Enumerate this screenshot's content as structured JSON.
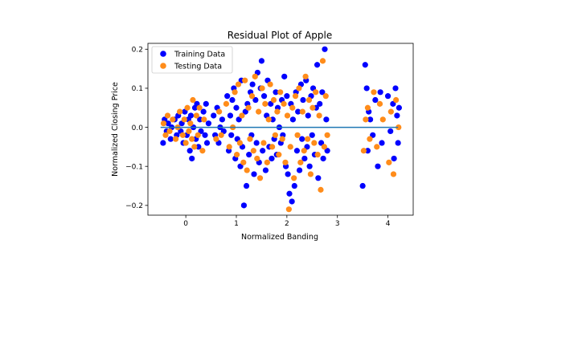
{
  "chart_data": {
    "type": "scatter",
    "title": "Residual Plot of Apple",
    "xlabel": "Normalized Banding",
    "ylabel": "Normalized Closing Price",
    "xlim": [
      -0.75,
      4.5
    ],
    "ylim": [
      -0.225,
      0.215
    ],
    "x_ticks": [
      0,
      1,
      2,
      3,
      4
    ],
    "y_ticks": [
      -0.2,
      -0.1,
      0.0,
      0.1,
      0.2
    ],
    "x_tick_labels": [
      "0",
      "1",
      "2",
      "3",
      "4"
    ],
    "y_tick_labels": [
      "−0.2",
      "−0.1",
      "0.0",
      "0.1",
      "0.2"
    ],
    "grid": false,
    "legend_position": "top-left",
    "reference_line": {
      "y": 0.0,
      "x_range": [
        -0.5,
        4.2
      ],
      "color": "#1f77b4"
    },
    "series": [
      {
        "name": "Training Data",
        "color": "#0000ff",
        "points": [
          [
            -0.45,
            -0.04
          ],
          [
            -0.42,
            0.02
          ],
          [
            -0.38,
            -0.01
          ],
          [
            -0.35,
            0.01
          ],
          [
            -0.3,
            -0.03
          ],
          [
            -0.28,
            0.0
          ],
          [
            -0.22,
            0.02
          ],
          [
            -0.18,
            -0.02
          ],
          [
            -0.15,
            0.03
          ],
          [
            -0.1,
            -0.01
          ],
          [
            -0.08,
            0.01
          ],
          [
            -0.05,
            -0.04
          ],
          [
            -0.02,
            0.04
          ],
          [
            0.02,
            -0.02
          ],
          [
            0.05,
            0.02
          ],
          [
            0.08,
            -0.06
          ],
          [
            0.1,
            0.03
          ],
          [
            0.12,
            -0.08
          ],
          [
            0.15,
            0.0
          ],
          [
            0.18,
            0.05
          ],
          [
            0.2,
            -0.03
          ],
          [
            0.22,
            0.06
          ],
          [
            0.25,
            -0.05
          ],
          [
            0.28,
            0.02
          ],
          [
            0.3,
            -0.01
          ],
          [
            0.35,
            0.04
          ],
          [
            0.38,
            -0.02
          ],
          [
            0.4,
            0.06
          ],
          [
            0.42,
            -0.04
          ],
          [
            0.45,
            0.01
          ],
          [
            0.55,
            0.03
          ],
          [
            0.58,
            -0.02
          ],
          [
            0.62,
            0.05
          ],
          [
            0.65,
            -0.04
          ],
          [
            0.68,
            0.0
          ],
          [
            0.72,
            0.02
          ],
          [
            0.75,
            -0.01
          ],
          [
            0.82,
            0.08
          ],
          [
            0.85,
            -0.06
          ],
          [
            0.88,
            0.03
          ],
          [
            0.9,
            -0.02
          ],
          [
            0.92,
            0.07
          ],
          [
            0.95,
            0.1
          ],
          [
            0.98,
            -0.08
          ],
          [
            1.0,
            0.05
          ],
          [
            1.02,
            -0.03
          ],
          [
            1.05,
            0.02
          ],
          [
            1.08,
            -0.1
          ],
          [
            1.1,
            0.12
          ],
          [
            1.12,
            -0.05
          ],
          [
            1.15,
            -0.2
          ],
          [
            1.18,
            0.04
          ],
          [
            1.2,
            -0.15
          ],
          [
            1.22,
            0.06
          ],
          [
            1.25,
            -0.07
          ],
          [
            1.28,
            0.09
          ],
          [
            1.3,
            -0.02
          ],
          [
            1.32,
            0.11
          ],
          [
            1.35,
            -0.12
          ],
          [
            1.38,
            0.07
          ],
          [
            1.4,
            -0.04
          ],
          [
            1.42,
            0.14
          ],
          [
            1.45,
            -0.09
          ],
          [
            1.48,
            0.1
          ],
          [
            1.5,
            0.17
          ],
          [
            1.52,
            -0.06
          ],
          [
            1.55,
            0.08
          ],
          [
            1.58,
            -0.11
          ],
          [
            1.6,
            0.03
          ],
          [
            1.62,
            0.12
          ],
          [
            1.65,
            -0.05
          ],
          [
            1.68,
            0.06
          ],
          [
            1.7,
            -0.08
          ],
          [
            1.72,
            0.02
          ],
          [
            1.75,
            -0.03
          ],
          [
            1.78,
            0.09
          ],
          [
            1.8,
            -0.07
          ],
          [
            1.82,
            0.05
          ],
          [
            1.85,
            0.0
          ],
          [
            1.88,
            -0.04
          ],
          [
            1.9,
            0.07
          ],
          [
            1.92,
            -0.02
          ],
          [
            1.95,
            0.13
          ],
          [
            1.98,
            -0.1
          ],
          [
            2.0,
            0.08
          ],
          [
            2.02,
            -0.12
          ],
          [
            2.05,
            -0.17
          ],
          [
            2.08,
            0.06
          ],
          [
            2.1,
            -0.19
          ],
          [
            2.12,
            0.02
          ],
          [
            2.15,
            -0.15
          ],
          [
            2.18,
            0.09
          ],
          [
            2.2,
            -0.06
          ],
          [
            2.22,
            0.04
          ],
          [
            2.25,
            -0.11
          ],
          [
            2.28,
            0.11
          ],
          [
            2.3,
            -0.03
          ],
          [
            2.32,
            0.07
          ],
          [
            2.35,
            -0.08
          ],
          [
            2.38,
            0.12
          ],
          [
            2.4,
            -0.05
          ],
          [
            2.42,
            0.03
          ],
          [
            2.45,
            -0.1
          ],
          [
            2.48,
            0.08
          ],
          [
            2.5,
            -0.02
          ],
          [
            2.52,
            0.1
          ],
          [
            2.55,
            -0.07
          ],
          [
            2.58,
            0.05
          ],
          [
            2.6,
            0.16
          ],
          [
            2.62,
            -0.13
          ],
          [
            2.65,
            0.06
          ],
          [
            2.68,
            -0.04
          ],
          [
            2.7,
            0.09
          ],
          [
            2.72,
            -0.08
          ],
          [
            2.75,
            0.2
          ],
          [
            2.78,
            0.02
          ],
          [
            2.8,
            -0.06
          ],
          [
            3.5,
            -0.15
          ],
          [
            3.55,
            0.16
          ],
          [
            3.58,
            0.1
          ],
          [
            3.6,
            -0.06
          ],
          [
            3.62,
            0.04
          ],
          [
            3.65,
            0.02
          ],
          [
            3.7,
            -0.02
          ],
          [
            3.75,
            0.07
          ],
          [
            3.8,
            -0.1
          ],
          [
            3.85,
            0.09
          ],
          [
            3.88,
            -0.04
          ],
          [
            4.0,
            0.08
          ],
          [
            4.05,
            -0.01
          ],
          [
            4.1,
            0.06
          ],
          [
            4.12,
            -0.08
          ],
          [
            4.15,
            0.1
          ],
          [
            4.18,
            0.03
          ],
          [
            4.2,
            -0.04
          ],
          [
            4.22,
            0.05
          ]
        ]
      },
      {
        "name": "Testing Data",
        "color": "#ff8c1a",
        "points": [
          [
            -0.44,
            0.01
          ],
          [
            -0.4,
            -0.02
          ],
          [
            -0.36,
            0.03
          ],
          [
            -0.32,
            -0.01
          ],
          [
            -0.26,
            0.02
          ],
          [
            -0.2,
            -0.03
          ],
          [
            -0.16,
            0.0
          ],
          [
            -0.12,
            0.04
          ],
          [
            -0.06,
            -0.02
          ],
          [
            -0.03,
            0.02
          ],
          [
            0.0,
            -0.04
          ],
          [
            0.03,
            0.05
          ],
          [
            0.06,
            -0.01
          ],
          [
            0.09,
            0.01
          ],
          [
            0.12,
            -0.03
          ],
          [
            0.14,
            0.07
          ],
          [
            0.17,
            -0.05
          ],
          [
            0.21,
            0.03
          ],
          [
            0.24,
            -0.02
          ],
          [
            0.27,
            0.05
          ],
          [
            0.33,
            -0.06
          ],
          [
            0.36,
            0.02
          ],
          [
            0.6,
            -0.03
          ],
          [
            0.66,
            0.04
          ],
          [
            0.7,
            -0.02
          ],
          [
            0.8,
            0.06
          ],
          [
            0.86,
            -0.05
          ],
          [
            0.93,
            0.0
          ],
          [
            0.97,
            0.09
          ],
          [
            1.01,
            -0.07
          ],
          [
            1.04,
            0.11
          ],
          [
            1.07,
            -0.04
          ],
          [
            1.11,
            0.03
          ],
          [
            1.14,
            -0.09
          ],
          [
            1.17,
            0.12
          ],
          [
            1.21,
            -0.11
          ],
          [
            1.24,
            0.05
          ],
          [
            1.27,
            -0.03
          ],
          [
            1.31,
            0.08
          ],
          [
            1.34,
            -0.06
          ],
          [
            1.37,
            0.13
          ],
          [
            1.41,
            -0.08
          ],
          [
            1.44,
            0.04
          ],
          [
            1.47,
            -0.13
          ],
          [
            1.51,
            0.1
          ],
          [
            1.54,
            -0.04
          ],
          [
            1.57,
            0.06
          ],
          [
            1.61,
            -0.09
          ],
          [
            1.64,
            0.02
          ],
          [
            1.67,
            0.11
          ],
          [
            1.71,
            -0.05
          ],
          [
            1.74,
            0.07
          ],
          [
            1.77,
            -0.02
          ],
          [
            1.81,
            0.04
          ],
          [
            1.84,
            -0.07
          ],
          [
            1.87,
            0.09
          ],
          [
            1.91,
            -0.03
          ],
          [
            1.94,
            0.06
          ],
          [
            1.97,
            -0.09
          ],
          [
            2.01,
            0.03
          ],
          [
            2.04,
            -0.21
          ],
          [
            2.07,
            -0.05
          ],
          [
            2.11,
            0.05
          ],
          [
            2.14,
            -0.13
          ],
          [
            2.17,
            0.08
          ],
          [
            2.21,
            -0.02
          ],
          [
            2.24,
            0.1
          ],
          [
            2.27,
            -0.09
          ],
          [
            2.31,
            0.04
          ],
          [
            2.34,
            -0.06
          ],
          [
            2.37,
            0.13
          ],
          [
            2.41,
            -0.03
          ],
          [
            2.44,
            0.07
          ],
          [
            2.47,
            -0.12
          ],
          [
            2.51,
            0.05
          ],
          [
            2.54,
            -0.04
          ],
          [
            2.57,
            0.09
          ],
          [
            2.61,
            -0.07
          ],
          [
            2.64,
            0.03
          ],
          [
            2.67,
            -0.16
          ],
          [
            2.71,
            0.17
          ],
          [
            2.74,
            -0.05
          ],
          [
            2.77,
            0.08
          ],
          [
            2.8,
            -0.02
          ],
          [
            3.52,
            -0.06
          ],
          [
            3.56,
            0.02
          ],
          [
            3.6,
            0.05
          ],
          [
            3.64,
            -0.03
          ],
          [
            3.72,
            0.09
          ],
          [
            3.78,
            -0.05
          ],
          [
            3.84,
            0.06
          ],
          [
            3.9,
            0.02
          ],
          [
            4.02,
            -0.09
          ],
          [
            4.06,
            0.04
          ],
          [
            4.11,
            -0.12
          ],
          [
            4.16,
            0.07
          ],
          [
            4.21,
            0.0
          ]
        ]
      }
    ]
  }
}
